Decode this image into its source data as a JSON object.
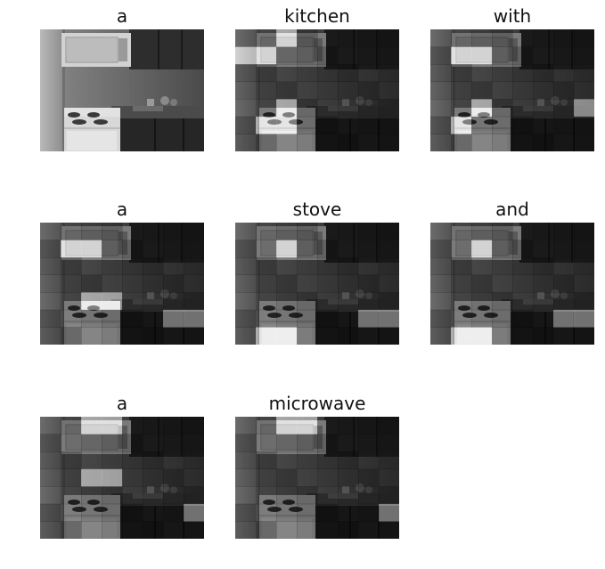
{
  "panels": [
    {
      "word": "a",
      "attention_cells": []
    },
    {
      "word": "kitchen",
      "attention_cells": [
        [
          0,
          2
        ],
        [
          1,
          0
        ],
        [
          1,
          1
        ],
        [
          4,
          2
        ],
        [
          5,
          1
        ],
        [
          5,
          2
        ]
      ]
    },
    {
      "word": "with",
      "attention_cells": [
        [
          1,
          1
        ],
        [
          1,
          2
        ],
        [
          4,
          2
        ],
        [
          4,
          7
        ],
        [
          5,
          1
        ]
      ]
    },
    {
      "word": "a",
      "attention_cells": [
        [
          1,
          1
        ],
        [
          1,
          2
        ],
        [
          4,
          2
        ],
        [
          4,
          3
        ],
        [
          5,
          6
        ],
        [
          5,
          7
        ]
      ]
    },
    {
      "word": "stove",
      "attention_cells": [
        [
          1,
          2
        ],
        [
          5,
          6
        ],
        [
          5,
          7
        ],
        [
          6,
          1
        ],
        [
          6,
          2
        ]
      ]
    },
    {
      "word": "and",
      "attention_cells": [
        [
          1,
          2
        ],
        [
          5,
          6
        ],
        [
          5,
          7
        ],
        [
          6,
          1
        ],
        [
          6,
          2
        ]
      ]
    },
    {
      "word": "a",
      "attention_cells": [
        [
          0,
          2
        ],
        [
          0,
          3
        ],
        [
          3,
          2
        ],
        [
          3,
          3
        ],
        [
          5,
          7
        ]
      ]
    },
    {
      "word": "microwave",
      "attention_cells": [
        [
          0,
          2
        ],
        [
          0,
          3
        ],
        [
          5,
          7
        ]
      ]
    }
  ]
}
